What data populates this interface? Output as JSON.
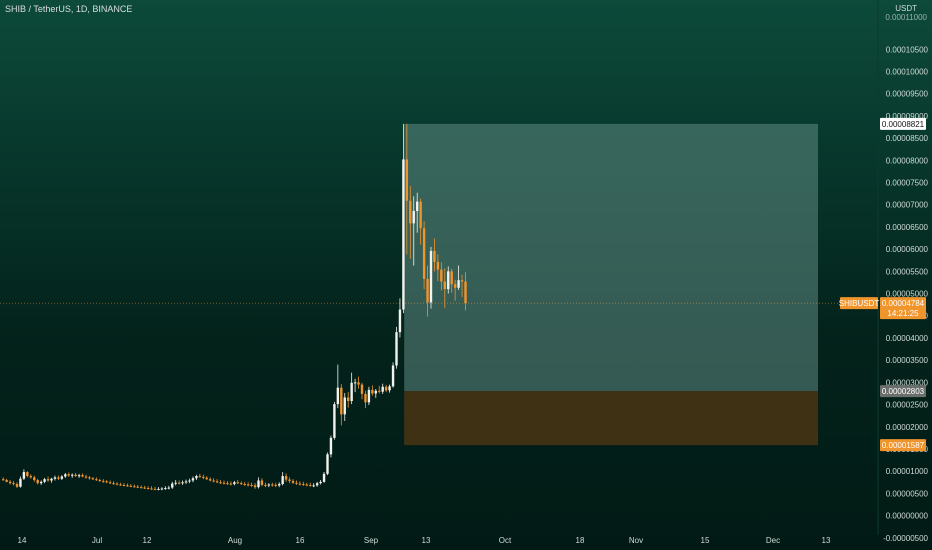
{
  "header": {
    "title": "SHIB / TetherUS, 1D, BINANCE",
    "currency": "USDT",
    "top_tick_partial": "0.00011000"
  },
  "colors": {
    "up": "#f2f2ee",
    "down": "#f0942c",
    "price_line": "#f0942c",
    "target_zone": "#5f8a83",
    "stop_zone": "#4a3614",
    "axis_text": "#d0dad6"
  },
  "markers": {
    "target_label": "0.00008821",
    "current_symbol": "SHIBUSDT",
    "current_price": "0.00004784",
    "countdown": "14:21:25",
    "entry_label": "0.00002803",
    "stop_label": "0.00001587"
  },
  "chart_data": {
    "type": "candlestick",
    "title": "SHIB / TetherUS, 1D, BINANCE",
    "ylabel": "USDT",
    "ylim": [
      -5.5e-06,
      0.0001125
    ],
    "y_ticks": [
      "0.00010500",
      "0.00010000",
      "0.00009500",
      "0.00009000",
      "0.00008500",
      "0.00008000",
      "0.00007500",
      "0.00007000",
      "0.00006500",
      "0.00006000",
      "0.00005500",
      "0.00005000",
      "0.00004500",
      "0.00004000",
      "0.00003500",
      "0.00003000",
      "0.00002500",
      "0.00002000",
      "0.00001500",
      "0.00001000",
      "0.00000500",
      "0.00000000",
      "-0.00000500"
    ],
    "x_ticks": [
      "14",
      "Jul",
      "12",
      "Aug",
      "16",
      "Sep",
      "13",
      "Oct",
      "18",
      "Nov",
      "15",
      "Dec",
      "13"
    ],
    "target_price": 8.821e-05,
    "entry_price": 2.803e-05,
    "stop_price": 1.587e-05,
    "current_price": 4.784e-05,
    "candles_ohlc": [
      [
        8.2e-06,
        8.6e-06,
        7.8e-06,
        8e-06
      ],
      [
        8e-06,
        8.3e-06,
        7.5e-06,
        7.6e-06
      ],
      [
        7.6e-06,
        8e-06,
        7e-06,
        7.3e-06
      ],
      [
        7.3e-06,
        7.8e-06,
        6.8e-06,
        7.1e-06
      ],
      [
        7.1e-06,
        7.5e-06,
        6.2e-06,
        6.5e-06
      ],
      [
        6.5e-06,
        8.8e-06,
        6.3e-06,
        8.3e-06
      ],
      [
        8.3e-06,
        1.04e-05,
        8e-06,
        9.8e-06
      ],
      [
        9.8e-06,
        1e-05,
        8.6e-06,
        8.9e-06
      ],
      [
        8.9e-06,
        9.3e-06,
        8.3e-06,
        8.6e-06
      ],
      [
        8.6e-06,
        9e-06,
        7.6e-06,
        8e-06
      ],
      [
        8e-06,
        8.3e-06,
        7e-06,
        7.3e-06
      ],
      [
        7.3e-06,
        7.9e-06,
        6.9e-06,
        7.6e-06
      ],
      [
        7.6e-06,
        8.5e-06,
        7.3e-06,
        8.2e-06
      ],
      [
        8.2e-06,
        8.8e-06,
        7.6e-06,
        7.9e-06
      ],
      [
        7.9e-06,
        8.5e-06,
        7.4e-06,
        8.3e-06
      ],
      [
        8.3e-06,
        9e-06,
        7.9e-06,
        8.6e-06
      ],
      [
        8.6e-06,
        9e-06,
        8e-06,
        8.3e-06
      ],
      [
        8.3e-06,
        9.1e-06,
        8e-06,
        8.8e-06
      ],
      [
        8.8e-06,
        9.6e-06,
        8.5e-06,
        9.3e-06
      ],
      [
        9.3e-06,
        9.7e-06,
        8.7e-06,
        9e-06
      ],
      [
        9e-06,
        9.5e-06,
        8.5e-06,
        9.2e-06
      ],
      [
        9.2e-06,
        9.6e-06,
        8.7e-06,
        8.9e-06
      ],
      [
        8.9e-06,
        9.4e-06,
        8.5e-06,
        9.1e-06
      ],
      [
        9.1e-06,
        9.5e-06,
        8.6e-06,
        8.8e-06
      ],
      [
        8.8e-06,
        9.2e-06,
        8.3e-06,
        8.6e-06
      ],
      [
        8.6e-06,
        8.9e-06,
        8.1e-06,
        8.4e-06
      ],
      [
        8.4e-06,
        8.7e-06,
        8e-06,
        8.2e-06
      ],
      [
        8.2e-06,
        8.6e-06,
        7.8e-06,
        8e-06
      ],
      [
        8e-06,
        8.3e-06,
        7.6e-06,
        7.8e-06
      ],
      [
        7.8e-06,
        8.2e-06,
        7.4e-06,
        7.7e-06
      ],
      [
        7.7e-06,
        8e-06,
        7.3e-06,
        7.5e-06
      ],
      [
        7.5e-06,
        7.9e-06,
        7.1e-06,
        7.3e-06
      ],
      [
        7.3e-06,
        7.7e-06,
        6.9e-06,
        7.2e-06
      ],
      [
        7.2e-06,
        7.5e-06,
        6.8e-06,
        7e-06
      ],
      [
        7e-06,
        7.4e-06,
        6.7e-06,
        6.9e-06
      ],
      [
        6.9e-06,
        7.3e-06,
        6.6e-06,
        6.8e-06
      ],
      [
        6.8e-06,
        7.2e-06,
        6.5e-06,
        6.7e-06
      ],
      [
        6.7e-06,
        7.1e-06,
        6.4e-06,
        6.6e-06
      ],
      [
        6.6e-06,
        7e-06,
        6.3e-06,
        6.5e-06
      ],
      [
        6.5e-06,
        6.9e-06,
        6.2e-06,
        6.4e-06
      ],
      [
        6.4e-06,
        6.8e-06,
        6.1e-06,
        6.3e-06
      ],
      [
        6.3e-06,
        6.7e-06,
        6e-06,
        6.2e-06
      ],
      [
        6.2e-06,
        6.6e-06,
        5.9e-06,
        6.1e-06
      ],
      [
        6.1e-06,
        6.6e-06,
        5.8e-06,
        6e-06
      ],
      [
        6e-06,
        6.5e-06,
        5.7e-06,
        5.9e-06
      ],
      [
        5.9e-06,
        6.4e-06,
        5.7e-06,
        6e-06
      ],
      [
        6e-06,
        6.4e-06,
        5.7e-06,
        6.1e-06
      ],
      [
        6.1e-06,
        6.6e-06,
        5.8e-06,
        6.2e-06
      ],
      [
        6.2e-06,
        6.7e-06,
        5.9e-06,
        6.3e-06
      ],
      [
        6.3e-06,
        7.6e-06,
        6e-06,
        7.2e-06
      ],
      [
        7.2e-06,
        8e-06,
        6.8e-06,
        7.4e-06
      ],
      [
        7.4e-06,
        7.9e-06,
        7e-06,
        7.3e-06
      ],
      [
        7.3e-06,
        7.9e-06,
        6.9e-06,
        7.5e-06
      ],
      [
        7.5e-06,
        8.1e-06,
        7.1e-06,
        7.7e-06
      ],
      [
        7.7e-06,
        8.3e-06,
        7.3e-06,
        7.9e-06
      ],
      [
        7.9e-06,
        8.8e-06,
        7.5e-06,
        8.4e-06
      ],
      [
        8.4e-06,
        9.2e-06,
        8e-06,
        8.9e-06
      ],
      [
        8.9e-06,
        9.4e-06,
        8.5e-06,
        8.7e-06
      ],
      [
        8.7e-06,
        9.2e-06,
        8.2e-06,
        8.5e-06
      ],
      [
        8.5e-06,
        8.9e-06,
        8e-06,
        8.2e-06
      ],
      [
        8.2e-06,
        8.6e-06,
        7.7e-06,
        7.9e-06
      ],
      [
        7.9e-06,
        8.4e-06,
        7.5e-06,
        7.7e-06
      ],
      [
        7.7e-06,
        8.2e-06,
        7.3e-06,
        7.5e-06
      ],
      [
        7.5e-06,
        8e-06,
        7.1e-06,
        7.4e-06
      ],
      [
        7.4e-06,
        7.9e-06,
        7e-06,
        7.3e-06
      ],
      [
        7.3e-06,
        7.8e-06,
        6.9e-06,
        7.2e-06
      ],
      [
        7.2e-06,
        7.7e-06,
        6.8e-06,
        7.1e-06
      ],
      [
        7.1e-06,
        7.8e-06,
        6.8e-06,
        7.5e-06
      ],
      [
        7.5e-06,
        8e-06,
        7.1e-06,
        7.3e-06
      ],
      [
        7.3e-06,
        7.7e-06,
        6.9e-06,
        7.1e-06
      ],
      [
        7.1e-06,
        7.6e-06,
        6.7e-06,
        7e-06
      ],
      [
        7e-06,
        7.5e-06,
        6.6e-06,
        6.9e-06
      ],
      [
        6.9e-06,
        7.4e-06,
        6.5e-06,
        6.8e-06
      ],
      [
        6.8e-06,
        7.3e-06,
        6e-06,
        6.4e-06
      ],
      [
        6.4e-06,
        8.6e-06,
        6.1e-06,
        7.9e-06
      ],
      [
        7.9e-06,
        8.4e-06,
        6.6e-06,
        6.9e-06
      ],
      [
        6.9e-06,
        7.4e-06,
        6.4e-06,
        6.8e-06
      ],
      [
        6.8e-06,
        7.3e-06,
        6.4e-06,
        7e-06
      ],
      [
        7e-06,
        7.4e-06,
        6.5e-06,
        6.9e-06
      ],
      [
        6.9e-06,
        7.4e-06,
        6.4e-06,
        6.8e-06
      ],
      [
        6.8e-06,
        7.5e-06,
        6.4e-06,
        7.1e-06
      ],
      [
        7.1e-06,
        9.8e-06,
        6.8e-06,
        8.9e-06
      ],
      [
        8.9e-06,
        9.5e-06,
        7.6e-06,
        8.1e-06
      ],
      [
        8.1e-06,
        8.6e-06,
        7.3e-06,
        7.8e-06
      ],
      [
        7.8e-06,
        8.2e-06,
        7.1e-06,
        7.4e-06
      ],
      [
        7.4e-06,
        7.9e-06,
        6.9e-06,
        7.2e-06
      ],
      [
        7.2e-06,
        7.7e-06,
        6.8e-06,
        7.1e-06
      ],
      [
        7.1e-06,
        7.6e-06,
        6.7e-06,
        7e-06
      ],
      [
        7e-06,
        7.4e-06,
        6.6e-06,
        6.9e-06
      ],
      [
        6.9e-06,
        7.4e-06,
        6.5e-06,
        6.8e-06
      ],
      [
        6.8e-06,
        7.3e-06,
        6.4e-06,
        6.8e-06
      ],
      [
        6.8e-06,
        7.6e-06,
        6.5e-06,
        7.3e-06
      ],
      [
        7.3e-06,
        8e-06,
        7e-06,
        7.6e-06
      ],
      [
        7.6e-06,
        9.8e-06,
        7.4e-06,
        9.4e-06
      ],
      [
        9.4e-06,
        1.42e-05,
        9.1e-06,
        1.38e-05
      ],
      [
        1.38e-05,
        1.8e-05,
        1.31e-05,
        1.75e-05
      ],
      [
        1.75e-05,
        2.56e-05,
        1.71e-05,
        2.51e-05
      ],
      [
        2.51e-05,
        3.4e-05,
        2.42e-05,
        2.88e-05
      ],
      [
        2.88e-05,
        2.96e-05,
        2.03e-05,
        2.28e-05
      ],
      [
        2.28e-05,
        2.76e-05,
        2.13e-05,
        2.66e-05
      ],
      [
        2.66e-05,
        2.78e-05,
        2.43e-05,
        2.58e-05
      ],
      [
        2.58e-05,
        3.22e-05,
        2.51e-05,
        2.99e-05
      ],
      [
        2.99e-05,
        3.08e-05,
        2.78e-05,
        3e-05
      ],
      [
        3e-05,
        3.13e-05,
        2.86e-05,
        2.95e-05
      ],
      [
        2.95e-05,
        2.99e-05,
        2.62e-05,
        2.74e-05
      ],
      [
        2.74e-05,
        2.81e-05,
        2.42e-05,
        2.55e-05
      ],
      [
        2.55e-05,
        2.9e-05,
        2.49e-05,
        2.83e-05
      ],
      [
        2.83e-05,
        2.93e-05,
        2.7e-05,
        2.75e-05
      ],
      [
        2.75e-05,
        2.85e-05,
        2.65e-05,
        2.81e-05
      ],
      [
        2.81e-05,
        2.92e-05,
        2.75e-05,
        2.79e-05
      ],
      [
        2.79e-05,
        2.97e-05,
        2.74e-05,
        2.9e-05
      ],
      [
        2.9e-05,
        2.94e-05,
        2.78e-05,
        2.82e-05
      ],
      [
        2.82e-05,
        2.95e-05,
        2.77e-05,
        2.91e-05
      ],
      [
        2.91e-05,
        3.45e-05,
        2.88e-05,
        3.38e-05
      ],
      [
        3.38e-05,
        4.25e-05,
        3.31e-05,
        4.13e-05
      ],
      [
        4.13e-05,
        4.89e-05,
        4.01e-05,
        4.64e-05
      ],
      [
        4.64e-05,
        8.82e-05,
        4.56e-05,
        8.02e-05
      ],
      [
        8.02e-05,
        8.82e-05,
        5.88e-05,
        7.09e-05
      ],
      [
        7.09e-05,
        7.42e-05,
        5.78e-05,
        6.58e-05
      ],
      [
        6.58e-05,
        7.19e-05,
        5.63e-05,
        6.86e-05
      ],
      [
        6.86e-05,
        7.27e-05,
        6.37e-05,
        7.07e-05
      ],
      [
        7.07e-05,
        7.14e-05,
        6.1e-05,
        6.47e-05
      ],
      [
        6.47e-05,
        6.63e-05,
        5.1e-05,
        5.33e-05
      ],
      [
        5.33e-05,
        5.63e-05,
        4.48e-05,
        4.8e-05
      ],
      [
        4.8e-05,
        6.05e-05,
        4.66e-05,
        5.96e-05
      ],
      [
        5.96e-05,
        6.24e-05,
        5.5e-05,
        5.71e-05
      ],
      [
        5.71e-05,
        5.88e-05,
        5.28e-05,
        5.54e-05
      ],
      [
        5.54e-05,
        5.7e-05,
        5.07e-05,
        5.27e-05
      ],
      [
        5.27e-05,
        5.57e-05,
        4.68e-05,
        5.1e-05
      ],
      [
        5.1e-05,
        5.61e-05,
        5e-05,
        5.5e-05
      ],
      [
        5.5e-05,
        5.56e-05,
        5.02e-05,
        5.21e-05
      ],
      [
        5.21e-05,
        5.31e-05,
        4.84e-05,
        5.13e-05
      ],
      [
        5.13e-05,
        5.63e-05,
        5.08e-05,
        5.3e-05
      ],
      [
        5.3e-05,
        5.42e-05,
        4.92e-05,
        5.27e-05
      ],
      [
        5.27e-05,
        5.48e-05,
        4.62e-05,
        4.78e-05
      ]
    ]
  }
}
